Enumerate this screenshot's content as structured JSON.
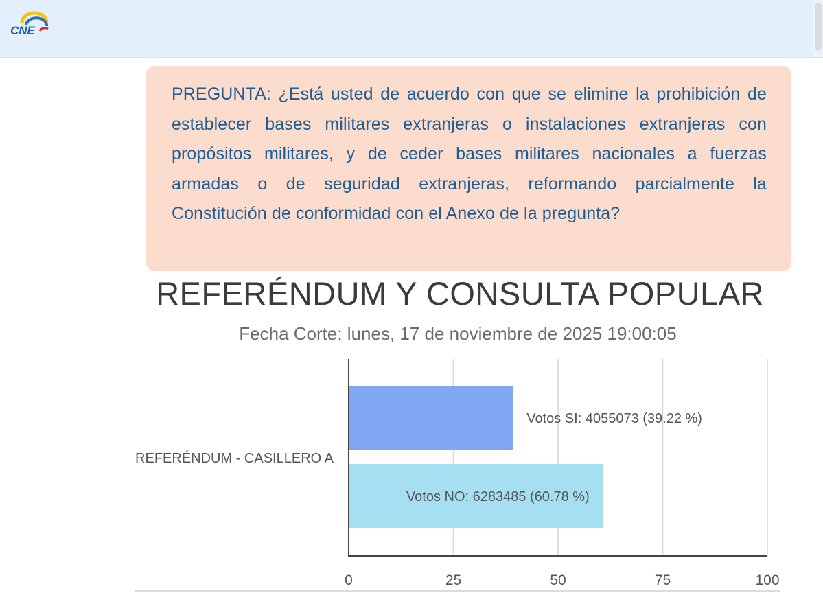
{
  "header": {
    "logo_text": "CNE",
    "colors": {
      "background": "#e3f0fb",
      "logo_blue": "#1f5fa8",
      "logo_yellow": "#f2c40f",
      "logo_red": "#d9272e"
    }
  },
  "question": {
    "text": "PREGUNTA: ¿Está usted de acuerdo con que se elimine la prohibición de establecer bases militares extranjeras o instalaciones extranjeras con propósitos militares, y de ceder bases militares nacionales a fuerzas armadas o de seguridad extranjeras, reformando parcialmente la Constitución de conformidad con el Anexo de la pregunta?",
    "colors": {
      "background": "#fbdccd",
      "text": "#1f5d95"
    }
  },
  "chart_data": {
    "type": "bar",
    "orientation": "horizontal",
    "title": "REFERÉNDUM Y CONSULTA POPULAR",
    "subtitle": "Fecha Corte: lunes, 17 de noviembre de 2025 19:00:05",
    "categories": [
      "REFERÉNDUM - CASILLERO A"
    ],
    "series": [
      {
        "name": "Votos SI",
        "votes": 4055073,
        "values": [
          39.22
        ],
        "label": "Votos SI: 4055073 (39.22 %)",
        "color": "#7fa7f2"
      },
      {
        "name": "Votos NO",
        "votes": 6283485,
        "values": [
          60.78
        ],
        "label": "Votos NO: 6283485 (60.78 %)",
        "color": "#a6dff2"
      }
    ],
    "xlim": [
      0,
      100
    ],
    "xticks": [
      "0",
      "25",
      "50",
      "75",
      "100"
    ],
    "grid": true,
    "legend": "none"
  }
}
